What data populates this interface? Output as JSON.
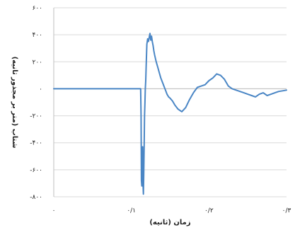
{
  "chart_data": {
    "type": "line",
    "title": "",
    "xlabel": "زمان (ثانیه)",
    "ylabel": "شتاب (متر بر مجذور ثانیه)",
    "xlim": [
      0,
      0.3
    ],
    "ylim": [
      -800,
      600
    ],
    "x_ticks": [
      0,
      0.1,
      0.2,
      0.3
    ],
    "x_tick_labels": [
      "۰",
      "۰/۱",
      "۰/۲",
      "۰/۳"
    ],
    "y_ticks": [
      600,
      400,
      200,
      0,
      -200,
      -400,
      -600,
      -800
    ],
    "y_tick_labels": [
      "۶۰۰",
      "۴۰۰",
      "۲۰۰",
      "۰",
      "-۲۰۰",
      "-۴۰۰",
      "-۶۰۰",
      "-۸۰۰"
    ],
    "grid": true,
    "legend": "none",
    "series_color": "#4a86c5",
    "series": [
      {
        "x": [
          0,
          0.02,
          0.04,
          0.06,
          0.08,
          0.1,
          0.112,
          0.1125,
          0.113,
          0.1135,
          0.114,
          0.1145,
          0.115,
          0.1155,
          0.116,
          0.1165,
          0.117,
          0.1175,
          0.118,
          0.1185,
          0.119,
          0.1195,
          0.12,
          0.121,
          0.122,
          0.123,
          0.124,
          0.125,
          0.126,
          0.127,
          0.128,
          0.129,
          0.13,
          0.132,
          0.134,
          0.136,
          0.138,
          0.14,
          0.142,
          0.144,
          0.146,
          0.148,
          0.15,
          0.153,
          0.156,
          0.16,
          0.165,
          0.17,
          0.175,
          0.18,
          0.185,
          0.19,
          0.195,
          0.2,
          0.205,
          0.21,
          0.215,
          0.22,
          0.225,
          0.23,
          0.235,
          0.24,
          0.245,
          0.25,
          0.255,
          0.26,
          0.265,
          0.27,
          0.275,
          0.28,
          0.285,
          0.29,
          0.295,
          0.3
        ],
        "y": [
          0,
          0,
          0,
          0,
          0,
          0,
          0,
          -200,
          -680,
          -720,
          -600,
          -430,
          -700,
          -780,
          -640,
          -420,
          -200,
          -100,
          0,
          60,
          150,
          250,
          330,
          370,
          350,
          380,
          410,
          360,
          390,
          350,
          320,
          280,
          250,
          200,
          160,
          120,
          80,
          50,
          20,
          -10,
          -40,
          -60,
          -70,
          -90,
          -120,
          -150,
          -170,
          -140,
          -80,
          -30,
          10,
          20,
          30,
          60,
          80,
          110,
          100,
          70,
          20,
          0,
          -10,
          -20,
          -30,
          -40,
          -50,
          -60,
          -40,
          -30,
          -50,
          -40,
          -30,
          -20,
          -15,
          -10
        ]
      }
    ]
  }
}
